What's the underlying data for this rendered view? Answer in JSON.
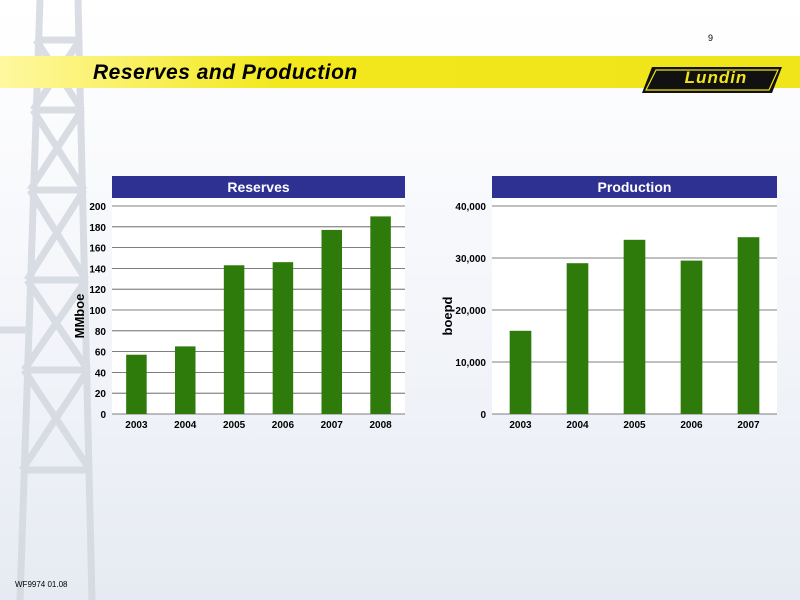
{
  "page": {
    "number": "9",
    "title": "Reserves and Production",
    "logo_text": "Lundin",
    "footer_code": "WF9974 01.08"
  },
  "colors": {
    "header_band": "#2e3192",
    "bar": "#2e7a0a",
    "plot_bg": "#ffffff",
    "title_band": "#f0e41a"
  },
  "chart_data": [
    {
      "type": "bar",
      "title": "Reserves",
      "ylabel": "MMboe",
      "xlabel": "",
      "categories": [
        "2003",
        "2004",
        "2005",
        "2006",
        "2007",
        "2008"
      ],
      "values": [
        57,
        65,
        143,
        146,
        177,
        190
      ],
      "ylim": [
        0,
        200
      ],
      "yticks": [
        "0",
        "20",
        "40",
        "60",
        "80",
        "100",
        "120",
        "140",
        "160",
        "180",
        "200"
      ],
      "grid": true,
      "legend": "none"
    },
    {
      "type": "bar",
      "title": "Production",
      "ylabel": "boepd",
      "xlabel": "",
      "categories": [
        "2003",
        "2004",
        "2005",
        "2006",
        "2007"
      ],
      "values": [
        16000,
        29000,
        33500,
        29500,
        34000
      ],
      "ylim": [
        0,
        40000
      ],
      "yticks": [
        "0",
        "10,000",
        "20,000",
        "30,000",
        "40,000"
      ],
      "grid": true,
      "legend": "none"
    }
  ]
}
